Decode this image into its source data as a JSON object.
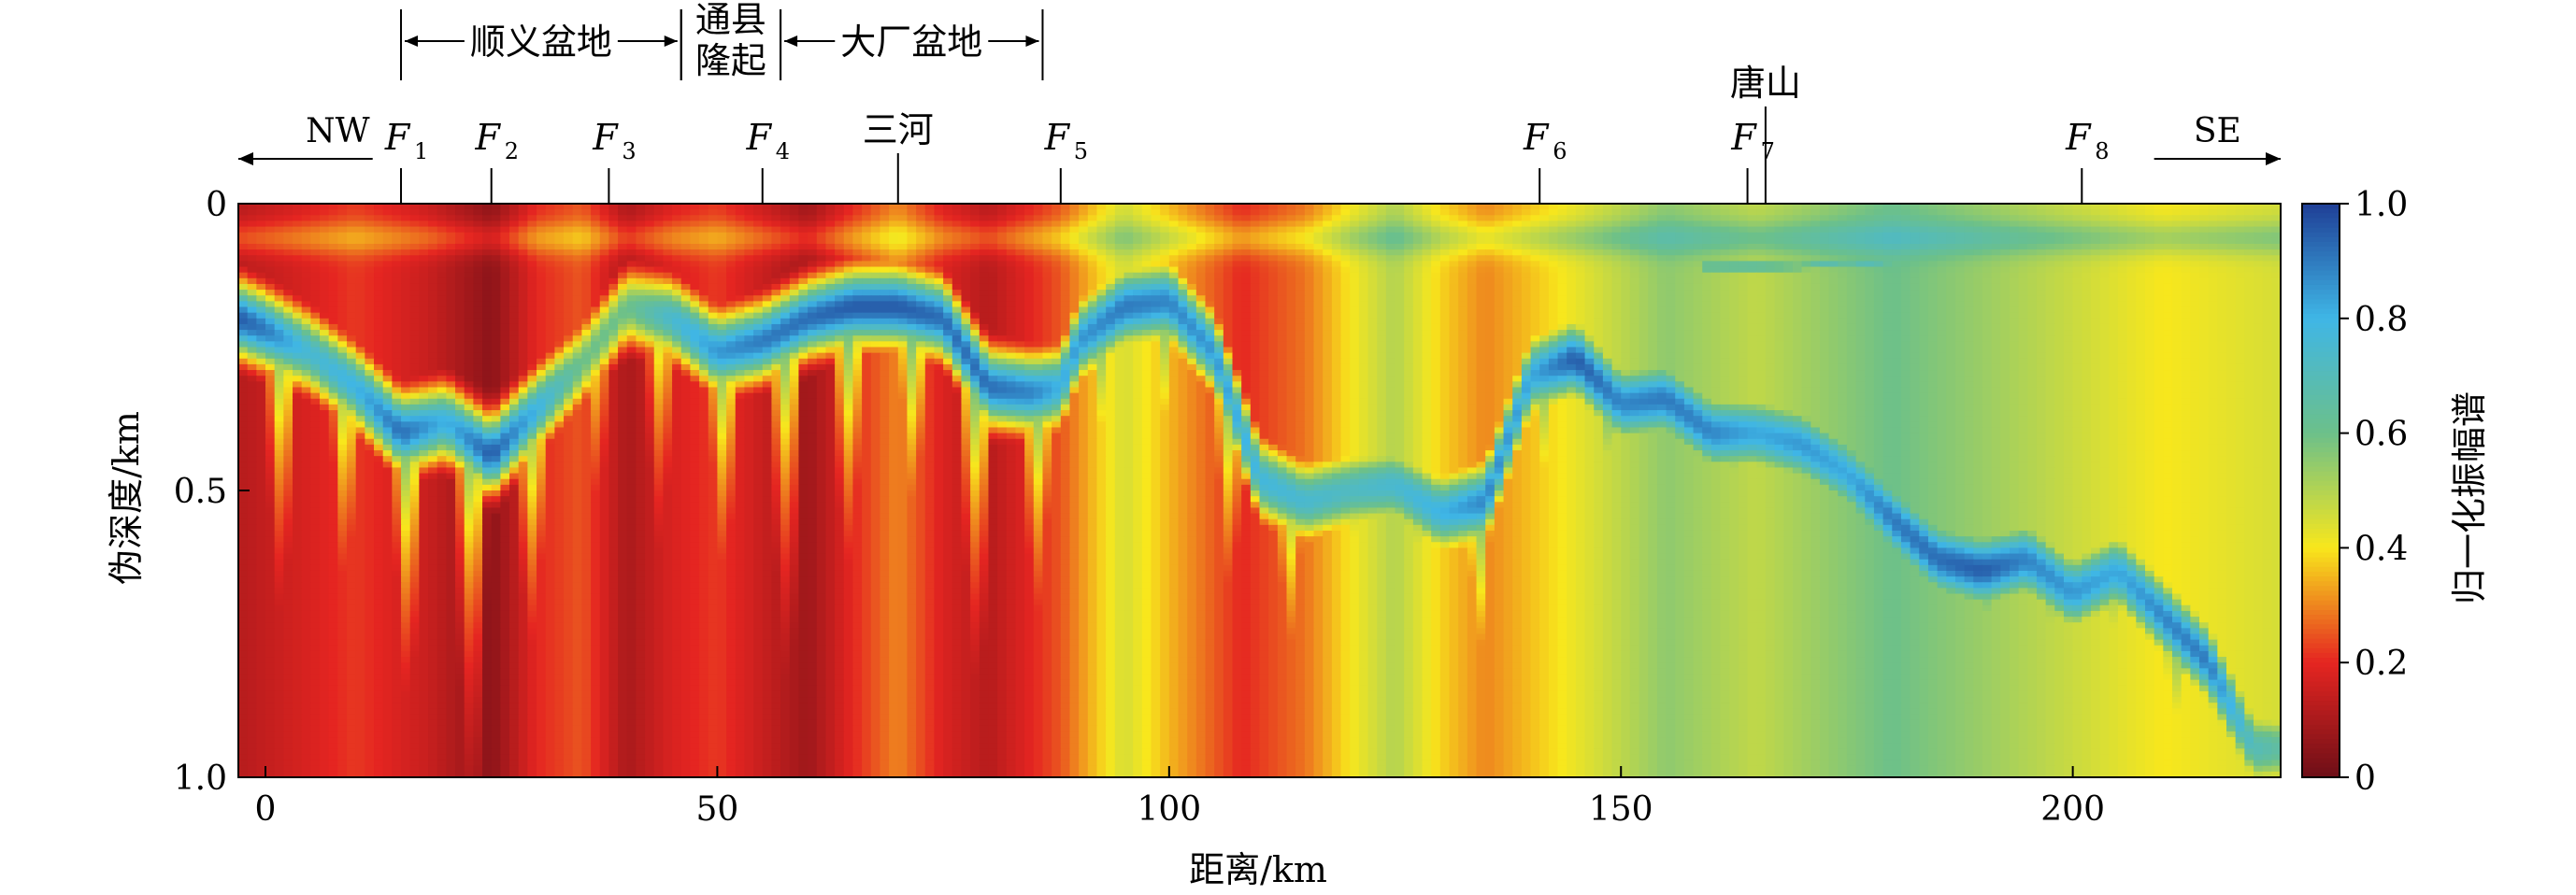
{
  "chart_data": {
    "type": "heatmap",
    "title": "",
    "xlabel": "距离/km",
    "ylabel": "伪深度/km",
    "colorbar_label": "归一化振幅谱",
    "xlim": [
      -3,
      223
    ],
    "ylim": [
      0,
      1.0
    ],
    "y_inverted": true,
    "x_ticks": [
      0,
      50,
      100,
      150,
      200
    ],
    "y_ticks": [
      0,
      0.5,
      1.0
    ],
    "y_tick_labels": [
      "0",
      "0.5",
      "1.0"
    ],
    "colorbar_ticks": [
      0,
      0.2,
      0.4,
      0.6,
      0.8,
      1.0
    ],
    "colorbar_tick_labels": [
      "0",
      "0.2",
      "0.4",
      "0.6",
      "0.8",
      "1.0"
    ],
    "colormap": [
      "#6e0f17",
      "#e52521",
      "#f8e71c",
      "#6cc08a",
      "#3fb6e6",
      "#1f3f96"
    ],
    "grid": false,
    "legend": "colorbar-right",
    "direction_labels": {
      "left": "NW",
      "right": "SE"
    },
    "faults": [
      {
        "name": "F",
        "sub": "1",
        "x": 15
      },
      {
        "name": "F",
        "sub": "2",
        "x": 25
      },
      {
        "name": "F",
        "sub": "3",
        "x": 38
      },
      {
        "name": "F",
        "sub": "4",
        "x": 55
      },
      {
        "name": "F",
        "sub": "5",
        "x": 88
      },
      {
        "name": "F",
        "sub": "6",
        "x": 141
      },
      {
        "name": "F",
        "sub": "7",
        "x": 164
      },
      {
        "name": "F",
        "sub": "8",
        "x": 201
      }
    ],
    "places": [
      {
        "name": "三河",
        "x": 70
      },
      {
        "name": "唐山",
        "x": 166
      }
    ],
    "regions": [
      {
        "name": "顺义盆地",
        "x_start": 15,
        "x_end": 46
      },
      {
        "name": "通县\n隆起",
        "x_start": 46,
        "x_end": 57
      },
      {
        "name": "大厂盆地",
        "x_start": 57,
        "x_end": 86
      }
    ],
    "anomaly_ridges": [
      {
        "x": [
          -3,
          0,
          5,
          10,
          15,
          20,
          25,
          30,
          35,
          40,
          45,
          50,
          55,
          60,
          65,
          70,
          75,
          80,
          85,
          88,
          90,
          95,
          100,
          105,
          110,
          115,
          120,
          125,
          130,
          135,
          140,
          145,
          150,
          155,
          160,
          165,
          170,
          175,
          180,
          185,
          190,
          195,
          200,
          205,
          210,
          215,
          220,
          223
        ],
        "y": [
          0.2,
          0.22,
          0.26,
          0.32,
          0.4,
          0.38,
          0.44,
          0.36,
          0.28,
          0.18,
          0.2,
          0.26,
          0.24,
          0.2,
          0.18,
          0.18,
          0.2,
          0.32,
          0.33,
          0.32,
          0.24,
          0.18,
          0.17,
          0.26,
          0.48,
          0.52,
          0.5,
          0.49,
          0.54,
          0.52,
          0.3,
          0.27,
          0.35,
          0.34,
          0.4,
          0.4,
          0.42,
          0.47,
          0.55,
          0.62,
          0.64,
          0.62,
          0.68,
          0.64,
          0.72,
          0.8,
          0.95,
          0.95
        ],
        "amplitude": [
          0.95,
          0.9,
          0.75,
          0.8,
          0.92,
          0.8,
          0.95,
          0.8,
          0.6,
          0.6,
          0.75,
          0.85,
          0.9,
          0.92,
          0.95,
          0.95,
          0.92,
          0.92,
          0.88,
          0.8,
          0.85,
          0.9,
          0.88,
          0.85,
          0.78,
          0.75,
          0.72,
          0.75,
          0.8,
          0.88,
          0.82,
          0.95,
          0.88,
          0.9,
          0.88,
          0.82,
          0.85,
          0.82,
          0.9,
          0.92,
          0.95,
          0.88,
          0.85,
          0.82,
          0.88,
          0.9,
          0.7,
          0.65
        ]
      },
      {
        "x": [
          160,
          165,
          170,
          175,
          180,
          185,
          190
        ],
        "y": [
          0.11,
          0.11,
          0.11,
          0.1,
          0.11,
          0.11,
          0.11
        ],
        "amplitude": [
          0.7,
          0.72,
          0.65,
          0.7,
          0.68,
          0.62,
          0.55
        ]
      }
    ],
    "background_amplitude_note": "",
    "background_amplitude": [
      0.12,
      0.18,
      0.22,
      0.15,
      0.05,
      0.2,
      0.25,
      0.1,
      0.18,
      0.22,
      0.15,
      0.08,
      0.2,
      0.3,
      0.18,
      0.12,
      0.25,
      0.45,
      0.35,
      0.2,
      0.28,
      0.4,
      0.5,
      0.38,
      0.3,
      0.42,
      0.55,
      0.48,
      0.6,
      0.5,
      0.4,
      0.45
    ],
    "background_x": [
      -3,
      5,
      10,
      18,
      25,
      30,
      35,
      40,
      45,
      50,
      55,
      60,
      65,
      70,
      75,
      80,
      88,
      95,
      100,
      108,
      115,
      120,
      125,
      130,
      135,
      145,
      155,
      165,
      180,
      195,
      210,
      223
    ]
  }
}
